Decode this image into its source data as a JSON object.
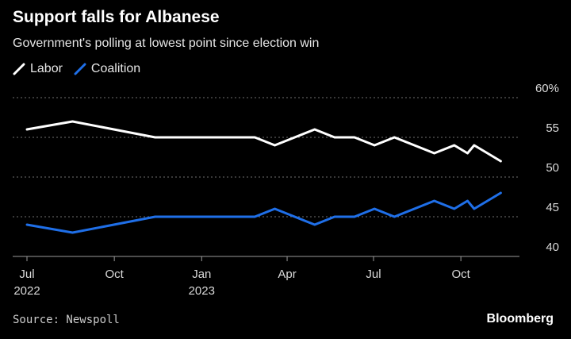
{
  "title": "Support falls for Albanese",
  "subtitle": "Government's polling at lowest point since election win",
  "source": "Source: Newspoll",
  "brand": "Bloomberg",
  "chart_data": {
    "type": "line",
    "y_unit": "%",
    "ylim": [
      40,
      60
    ],
    "yticks": [
      {
        "value": 40,
        "label": "40"
      },
      {
        "value": 45,
        "label": "45"
      },
      {
        "value": 50,
        "label": "50"
      },
      {
        "value": 55,
        "label": "55"
      },
      {
        "value": 60,
        "label": "60%"
      }
    ],
    "xlim": [
      "2022-07-01",
      "2023-11-20"
    ],
    "xticks": [
      {
        "date": "2022-07-01",
        "label": "Jul",
        "year": "2022"
      },
      {
        "date": "2022-10-01",
        "label": "Oct",
        "year": ""
      },
      {
        "date": "2023-01-01",
        "label": "Jan",
        "year": "2023"
      },
      {
        "date": "2023-04-01",
        "label": "Apr",
        "year": ""
      },
      {
        "date": "2023-07-01",
        "label": "Jul",
        "year": ""
      },
      {
        "date": "2023-10-01",
        "label": "Oct",
        "year": ""
      }
    ],
    "grid": true,
    "legend_position": "top-left",
    "dates": [
      "2022-07-01",
      "2022-08-18",
      "2022-11-13",
      "2023-01-15",
      "2023-02-26",
      "2023-03-19",
      "2023-04-09",
      "2023-04-30",
      "2023-05-21",
      "2023-06-11",
      "2023-07-02",
      "2023-07-23",
      "2023-08-13",
      "2023-09-03",
      "2023-09-24",
      "2023-10-08",
      "2023-10-15",
      "2023-10-29",
      "2023-11-12"
    ],
    "series": [
      {
        "name": "Labor",
        "color": "#ffffff",
        "values": [
          56,
          57,
          55,
          55,
          55,
          54,
          55,
          56,
          55,
          55,
          54,
          55,
          54,
          53,
          54,
          53,
          54,
          53,
          52
        ]
      },
      {
        "name": "Coalition",
        "color": "#1f6fe8",
        "values": [
          44,
          43,
          45,
          45,
          45,
          46,
          45,
          44,
          45,
          45,
          46,
          45,
          46,
          47,
          46,
          47,
          46,
          47,
          48
        ]
      }
    ]
  }
}
